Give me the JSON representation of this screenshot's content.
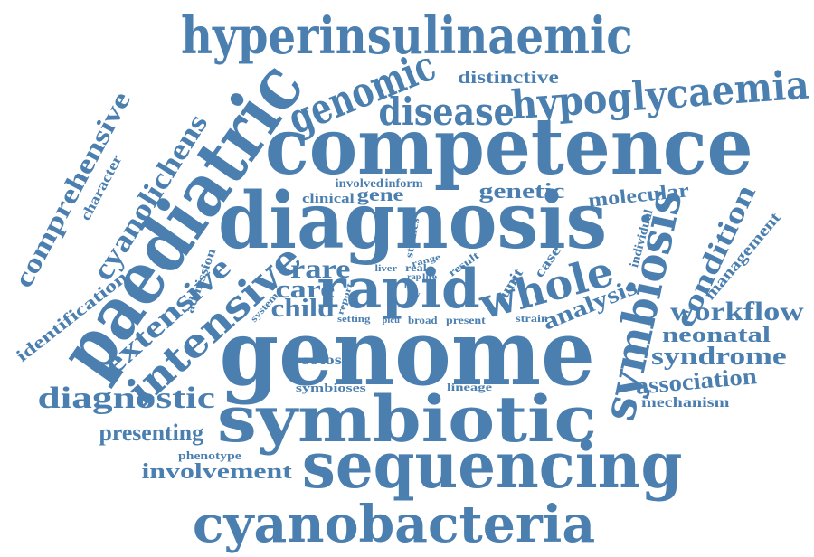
{
  "colors": {
    "word": "#4a7fb0",
    "background": "#ffffff"
  },
  "words": [
    "hyperinsulinaemic",
    "genomic",
    "distinctive",
    "disease",
    "hypoglycaemia",
    "comprehensive",
    "character",
    "cyanolichens",
    "paediatric",
    "competence",
    "diagnosis",
    "symbiosis",
    "clinical",
    "gene",
    "involved",
    "inform",
    "genetic",
    "molecular",
    "identification",
    "extensive",
    "admission",
    "intensive",
    "rare",
    "care",
    "child",
    "system",
    "rapid",
    "whole",
    "studies",
    "range",
    "result",
    "liver",
    "real",
    "rap",
    "life",
    "last",
    "day",
    "report",
    "unit",
    "case",
    "individual",
    "condition",
    "management",
    "workflow",
    "analysis",
    "setting",
    "picu",
    "broad",
    "present",
    "strain",
    "neonatal",
    "genome",
    "sotos",
    "syndrome",
    "association",
    "diagnostic",
    "symbioses",
    "lineage",
    "mechanism",
    "symbiotic",
    "presenting",
    "phenotype",
    "involvement",
    "sequencing",
    "cyanobacteria"
  ]
}
